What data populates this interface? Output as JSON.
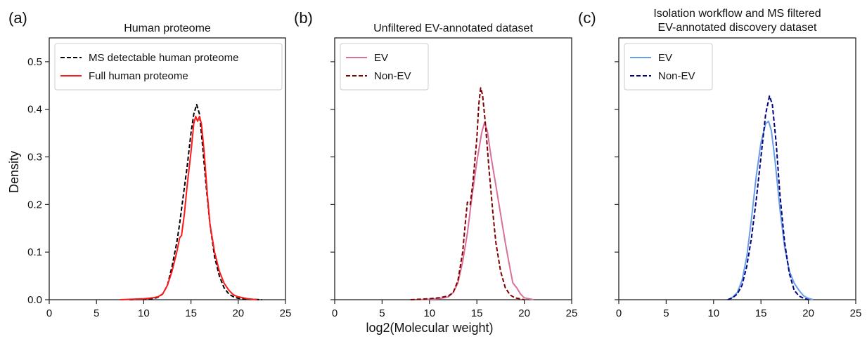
{
  "figure": {
    "ylabel": "Density",
    "xlabel": "log2(Molecular weight)"
  },
  "chart_data": [
    {
      "type": "line",
      "panel_label": "(a)",
      "title": [
        "Human proteome"
      ],
      "xlim": [
        0,
        25
      ],
      "ylim": [
        0,
        0.55
      ],
      "xticks": [
        0,
        5,
        10,
        15,
        20,
        25
      ],
      "yticks": [
        "0.0",
        "0.1",
        "0.2",
        "0.3",
        "0.4",
        "0.5"
      ],
      "show_ytick_labels": true,
      "legend_placement": "top-left",
      "grid": false,
      "series": [
        {
          "name": "MS detectable human proteome",
          "color": "#000000",
          "dash": "dashed",
          "x": [
            8.5,
            11.0,
            11.5,
            12.0,
            12.5,
            13.0,
            13.5,
            13.8,
            14.2,
            14.6,
            15.0,
            15.3,
            15.6,
            15.9,
            16.2,
            16.6,
            17.0,
            17.5,
            18.0,
            18.5,
            19.0,
            19.5,
            20.0,
            21.0,
            22.5
          ],
          "y": [
            0.0,
            0.002,
            0.005,
            0.012,
            0.03,
            0.07,
            0.12,
            0.16,
            0.22,
            0.28,
            0.35,
            0.39,
            0.41,
            0.39,
            0.33,
            0.24,
            0.16,
            0.09,
            0.05,
            0.025,
            0.012,
            0.006,
            0.003,
            0.001,
            0.0
          ]
        },
        {
          "name": "Full human proteome",
          "color": "#ff1a1a",
          "dash": "solid",
          "x": [
            7.5,
            10.0,
            11.0,
            11.5,
            12.0,
            12.5,
            13.0,
            13.5,
            13.8,
            14.0,
            14.3,
            14.6,
            15.0,
            15.3,
            15.5,
            15.7,
            15.9,
            16.1,
            16.4,
            16.7,
            17.0,
            17.5,
            18.0,
            18.5,
            19.0,
            19.5,
            20.0,
            21.0,
            22.0
          ],
          "y": [
            0.0,
            0.002,
            0.004,
            0.006,
            0.012,
            0.03,
            0.06,
            0.1,
            0.13,
            0.135,
            0.18,
            0.24,
            0.31,
            0.37,
            0.385,
            0.375,
            0.385,
            0.37,
            0.31,
            0.23,
            0.16,
            0.1,
            0.06,
            0.035,
            0.02,
            0.01,
            0.006,
            0.002,
            0.0
          ]
        }
      ]
    },
    {
      "type": "line",
      "panel_label": "(b)",
      "title": [
        "Unfiltered EV-annotated dataset"
      ],
      "xlim": [
        0,
        25
      ],
      "ylim": [
        0,
        0.55
      ],
      "xticks": [
        0,
        5,
        10,
        15,
        20,
        25
      ],
      "yticks": [
        "0.0",
        "0.1",
        "0.2",
        "0.3",
        "0.4",
        "0.5"
      ],
      "show_ytick_labels": false,
      "legend_placement": "top-left",
      "grid": false,
      "series": [
        {
          "name": "EV",
          "color": "#d9709a",
          "dash": "solid",
          "x": [
            9.0,
            11.0,
            12.0,
            12.5,
            13.0,
            13.5,
            14.0,
            14.5,
            15.0,
            15.5,
            15.8,
            16.1,
            16.5,
            17.0,
            17.5,
            18.0,
            18.5,
            18.8,
            19.2,
            19.6,
            20.0,
            21.0
          ],
          "y": [
            0.0,
            0.002,
            0.006,
            0.015,
            0.035,
            0.08,
            0.14,
            0.22,
            0.29,
            0.35,
            0.372,
            0.355,
            0.3,
            0.24,
            0.18,
            0.12,
            0.065,
            0.035,
            0.025,
            0.012,
            0.004,
            0.0
          ]
        },
        {
          "name": "Non-EV",
          "color": "#800000",
          "dash": "dashed",
          "x": [
            8.0,
            10.0,
            11.0,
            12.0,
            12.5,
            13.0,
            13.5,
            13.8,
            14.0,
            14.3,
            14.6,
            15.0,
            15.2,
            15.4,
            15.6,
            15.9,
            16.3,
            16.7,
            17.0,
            17.5,
            18.0,
            18.5,
            19.0,
            20.0
          ],
          "y": [
            0.0,
            0.002,
            0.004,
            0.008,
            0.015,
            0.04,
            0.1,
            0.165,
            0.205,
            0.2,
            0.25,
            0.34,
            0.41,
            0.445,
            0.43,
            0.37,
            0.27,
            0.18,
            0.12,
            0.06,
            0.025,
            0.01,
            0.004,
            0.0
          ]
        }
      ]
    },
    {
      "type": "line",
      "panel_label": "(c)",
      "title": [
        "Isolation workflow and MS filtered",
        "EV-annotated discovery dataset"
      ],
      "xlim": [
        0,
        25
      ],
      "ylim": [
        0,
        0.55
      ],
      "xticks": [
        0,
        5,
        10,
        15,
        20,
        25
      ],
      "yticks": [
        "0.0",
        "0.1",
        "0.2",
        "0.3",
        "0.4",
        "0.5"
      ],
      "show_ytick_labels": false,
      "legend_placement": "top-left",
      "grid": false,
      "series": [
        {
          "name": "EV",
          "color": "#6a9ee8",
          "dash": "solid",
          "x": [
            11.5,
            12.0,
            12.5,
            13.0,
            13.5,
            14.0,
            14.5,
            15.0,
            15.5,
            15.8,
            16.1,
            16.5,
            17.0,
            17.5,
            18.0,
            18.5,
            19.0,
            19.5,
            20.0,
            20.5
          ],
          "y": [
            0.0,
            0.005,
            0.015,
            0.04,
            0.09,
            0.17,
            0.26,
            0.33,
            0.37,
            0.375,
            0.355,
            0.29,
            0.19,
            0.11,
            0.06,
            0.035,
            0.02,
            0.008,
            0.003,
            0.0
          ]
        },
        {
          "name": "Non-EV",
          "color": "#000080",
          "dash": "dashed",
          "x": [
            11.5,
            12.0,
            12.5,
            13.0,
            13.5,
            14.0,
            14.5,
            15.0,
            15.5,
            15.9,
            16.2,
            16.6,
            17.0,
            17.5,
            18.0,
            18.5,
            19.0,
            19.5,
            20.0
          ],
          "y": [
            0.0,
            0.004,
            0.012,
            0.03,
            0.07,
            0.13,
            0.21,
            0.3,
            0.39,
            0.428,
            0.41,
            0.33,
            0.22,
            0.12,
            0.055,
            0.02,
            0.008,
            0.003,
            0.0
          ]
        }
      ]
    }
  ]
}
